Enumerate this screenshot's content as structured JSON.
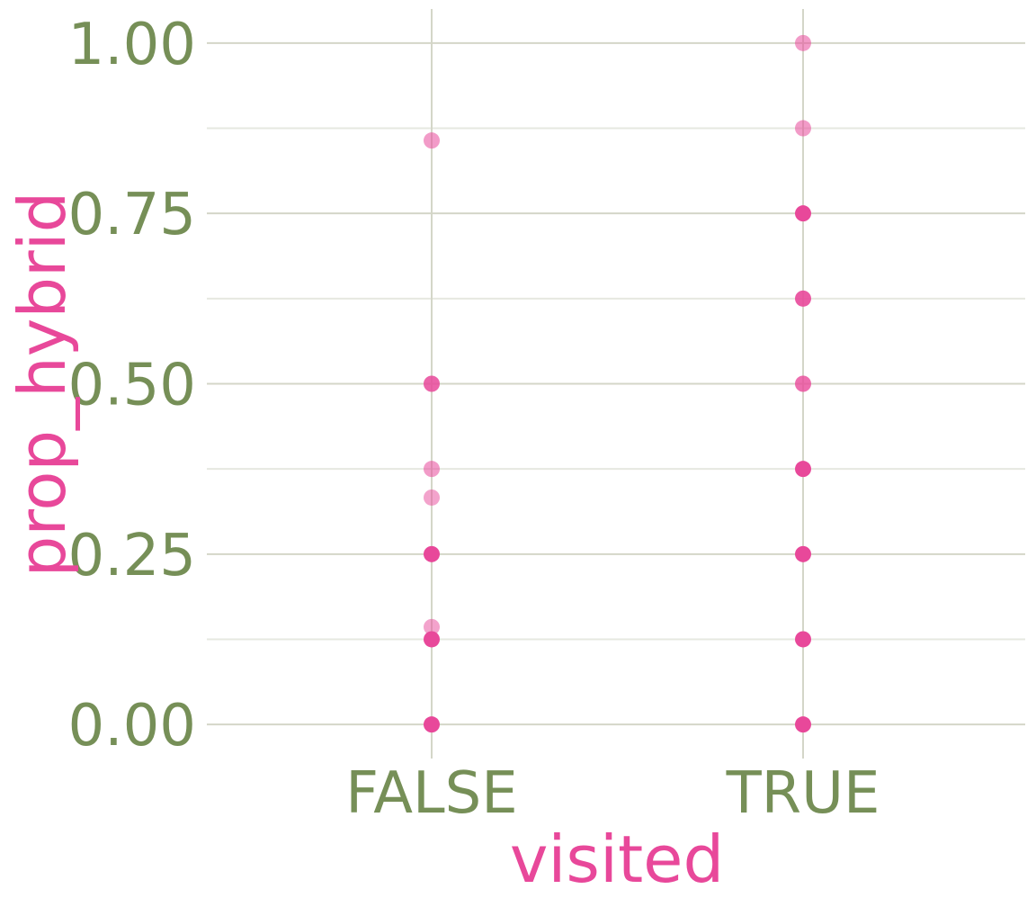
{
  "chart_data": {
    "type": "scatter",
    "xlabel": "visited",
    "ylabel": "prop_hybrid",
    "categories": [
      "FALSE",
      "TRUE"
    ],
    "ylim": [
      -0.05,
      1.05
    ],
    "y_ticks": [
      0.0,
      0.25,
      0.5,
      0.75,
      1.0
    ],
    "y_tick_labels": [
      "0.00",
      "0.25",
      "0.50",
      "0.75",
      "1.00"
    ],
    "y_minor_ticks": [
      0.125,
      0.375,
      0.625,
      0.875
    ],
    "grid": true,
    "legend": "none",
    "points": [
      {
        "x": "FALSE",
        "y": 0.857,
        "opacity": 0.55
      },
      {
        "x": "FALSE",
        "y": 0.5,
        "opacity": 0.85
      },
      {
        "x": "FALSE",
        "y": 0.375,
        "opacity": 0.55
      },
      {
        "x": "FALSE",
        "y": 0.333,
        "opacity": 0.5
      },
      {
        "x": "FALSE",
        "y": 0.25,
        "opacity": 1.0
      },
      {
        "x": "FALSE",
        "y": 0.143,
        "opacity": 0.5
      },
      {
        "x": "FALSE",
        "y": 0.125,
        "opacity": 1.0
      },
      {
        "x": "FALSE",
        "y": 0.0,
        "opacity": 1.0
      },
      {
        "x": "TRUE",
        "y": 1.0,
        "opacity": 0.55
      },
      {
        "x": "TRUE",
        "y": 0.875,
        "opacity": 0.55
      },
      {
        "x": "TRUE",
        "y": 0.75,
        "opacity": 1.0
      },
      {
        "x": "TRUE",
        "y": 0.625,
        "opacity": 0.9
      },
      {
        "x": "TRUE",
        "y": 0.5,
        "opacity": 0.8
      },
      {
        "x": "TRUE",
        "y": 0.375,
        "opacity": 1.0
      },
      {
        "x": "TRUE",
        "y": 0.25,
        "opacity": 1.0
      },
      {
        "x": "TRUE",
        "y": 0.125,
        "opacity": 1.0
      },
      {
        "x": "TRUE",
        "y": 0.0,
        "opacity": 1.0
      }
    ],
    "colors": {
      "point": "#e8489a",
      "axis_title": "#e8489a",
      "tick_label": "#768f57",
      "grid_major": "#d4d6c8",
      "grid_minor": "#e6e8e0"
    }
  }
}
